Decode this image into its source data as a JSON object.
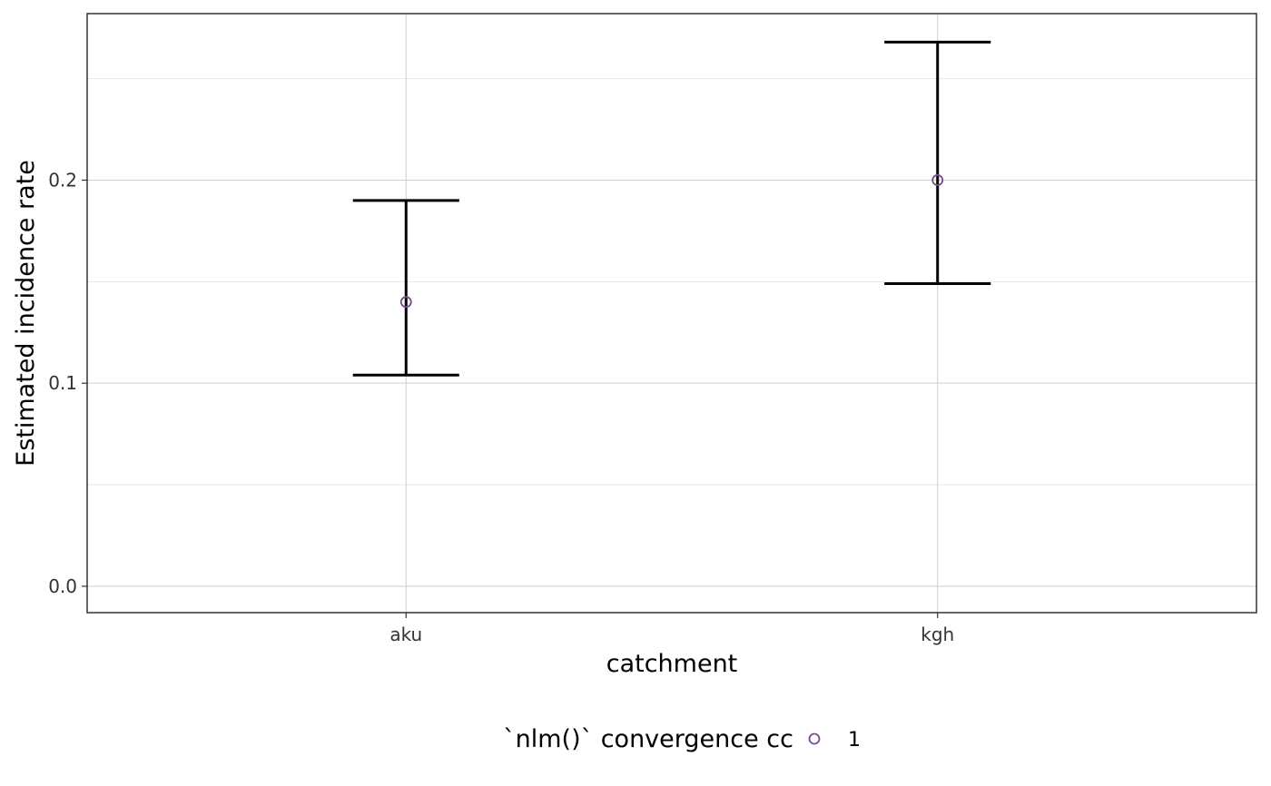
{
  "chart_data": {
    "type": "scatter",
    "title": "",
    "xlabel": "catchment",
    "ylabel": "Estimated incidence rate",
    "categories": [
      "aku",
      "kgh"
    ],
    "y_ticks": [
      0.0,
      0.1,
      0.2
    ],
    "y_tick_labels": [
      "0.0",
      "0.1",
      "0.2"
    ],
    "ylim": [
      -0.013,
      0.282
    ],
    "grid": true,
    "series": [
      {
        "estimate": [
          0.14,
          0.2
        ],
        "lower": [
          0.104,
          0.149
        ],
        "upper": [
          0.19,
          0.268
        ]
      }
    ],
    "legend": {
      "position": "bottom",
      "title": "`nlm()` convergence cc",
      "items": [
        "1"
      ]
    },
    "colors": {
      "point": "#7a4a8c",
      "errorbar": "#000000",
      "grid_major": "#cfcfcf",
      "grid_minor": "#e6e6e6",
      "panel_border": "#333333"
    }
  }
}
